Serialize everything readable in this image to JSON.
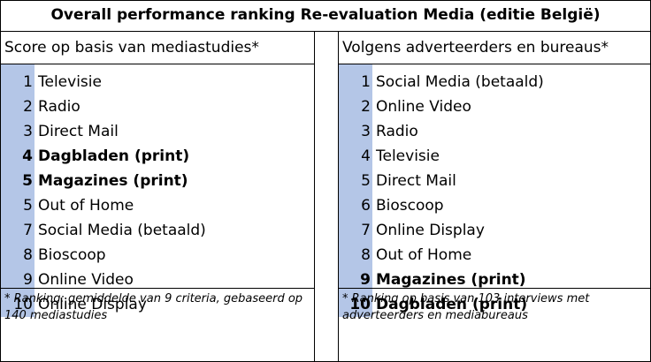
{
  "title": "Overall performance ranking Re-evaluation Media (editie België)",
  "left": {
    "header": "Score op basis van mediastudies*",
    "rows": [
      {
        "rank": "1",
        "label": "Televisie",
        "bold": false
      },
      {
        "rank": "2",
        "label": "Radio",
        "bold": false
      },
      {
        "rank": "3",
        "label": "Direct Mail",
        "bold": false
      },
      {
        "rank": "4",
        "label": "Dagbladen (print)",
        "bold": true
      },
      {
        "rank": "5",
        "label": "Magazines (print)",
        "bold": true
      },
      {
        "rank": "5",
        "label": "Out of Home",
        "bold": false
      },
      {
        "rank": "7",
        "label": "Social Media (betaald)",
        "bold": false
      },
      {
        "rank": "8",
        "label": "Bioscoop",
        "bold": false
      },
      {
        "rank": "9",
        "label": "Online Video",
        "bold": false
      },
      {
        "rank": "10",
        "label": "Online Display",
        "bold": false
      }
    ],
    "footnote": "* Ranking: gemiddelde van 9 criteria, gebaseerd op 140 mediastudies"
  },
  "right": {
    "header": "Volgens adverteerders en bureaus*",
    "rows": [
      {
        "rank": "1",
        "label": "Social Media (betaald)",
        "bold": false
      },
      {
        "rank": "2",
        "label": "Online Video",
        "bold": false
      },
      {
        "rank": "3",
        "label": "Radio",
        "bold": false
      },
      {
        "rank": "4",
        "label": "Televisie",
        "bold": false
      },
      {
        "rank": "5",
        "label": "Direct Mail",
        "bold": false
      },
      {
        "rank": "6",
        "label": "Bioscoop",
        "bold": false
      },
      {
        "rank": "7",
        "label": "Online Display",
        "bold": false
      },
      {
        "rank": "8",
        "label": "Out of Home",
        "bold": false
      },
      {
        "rank": "9",
        "label": "Magazines (print)",
        "bold": true
      },
      {
        "rank": "10",
        "label": "Dagbladen (print)",
        "bold": true
      }
    ],
    "footnote": "* Ranking op basis van 103 interviews met adverteerders en mediabureaus"
  },
  "colors": {
    "rank_highlight": "#b4c6e7",
    "border": "#000000"
  }
}
